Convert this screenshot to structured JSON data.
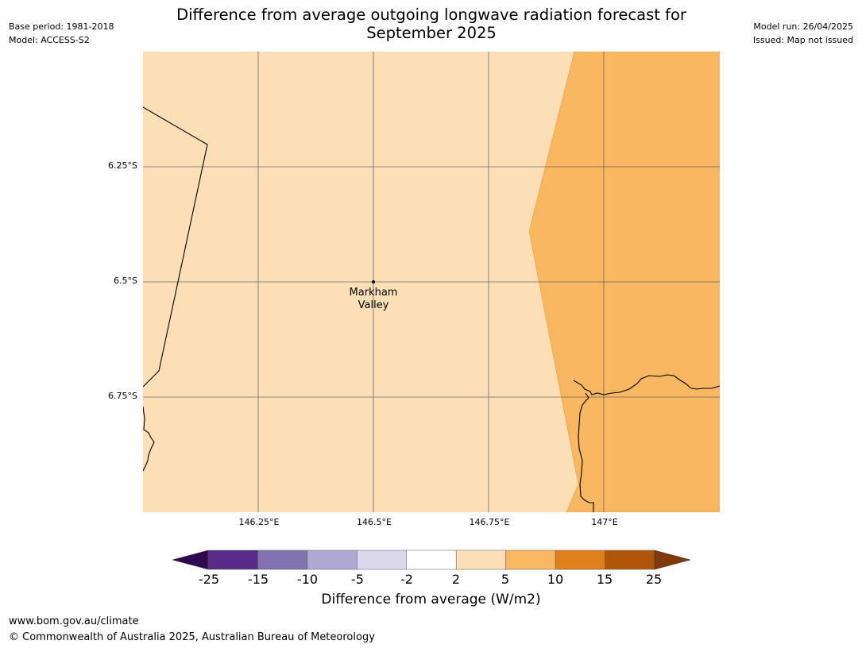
{
  "title": "Difference from average outgoing longwave radiation forecast for September 2025",
  "meta_left": {
    "base_period": "Base period: 1981-2018",
    "model": "Model: ACCESS-S2"
  },
  "meta_right": {
    "model_run": "Model run: 26/04/2025",
    "issued": "Issued: Map not issued"
  },
  "map": {
    "lat_ticks": [
      {
        "value": -6.25,
        "label": "6.25°S"
      },
      {
        "value": -6.5,
        "label": "6.5°S"
      },
      {
        "value": -6.75,
        "label": "6.75°S"
      }
    ],
    "lon_ticks": [
      {
        "value": 146.25,
        "label": "146.25°E"
      },
      {
        "value": 146.5,
        "label": "146.5°E"
      },
      {
        "value": 146.75,
        "label": "146.75°E"
      },
      {
        "value": 147.0,
        "label": "147°E"
      }
    ],
    "location": {
      "name_line1": "Markham",
      "name_line2": "Valley",
      "lon": 146.5,
      "lat": -6.5
    },
    "fill_colors": {
      "band_2_5": "#fcdfb6",
      "band_5_10": "#f9b762",
      "contour_edge": "#e8a24a"
    }
  },
  "colorbar": {
    "label": "Difference from average (W/m2)",
    "ticks": [
      "-25",
      "-15",
      "-10",
      "-5",
      "-2",
      "2",
      "5",
      "10",
      "15",
      "25"
    ],
    "bin_colors": [
      "#582a8a",
      "#8172b1",
      "#b0a8d3",
      "#d9d9eb",
      "#ffffff",
      "#fcdfb6",
      "#f9b762",
      "#e0801a",
      "#b15608"
    ],
    "extend_low_color": "#2f0a4f",
    "extend_high_color": "#7f3a0b"
  },
  "footer": {
    "url": "www.bom.gov.au/climate",
    "copyright": "© Commonwealth of Australia 2025, Australian Bureau of Meteorology"
  }
}
